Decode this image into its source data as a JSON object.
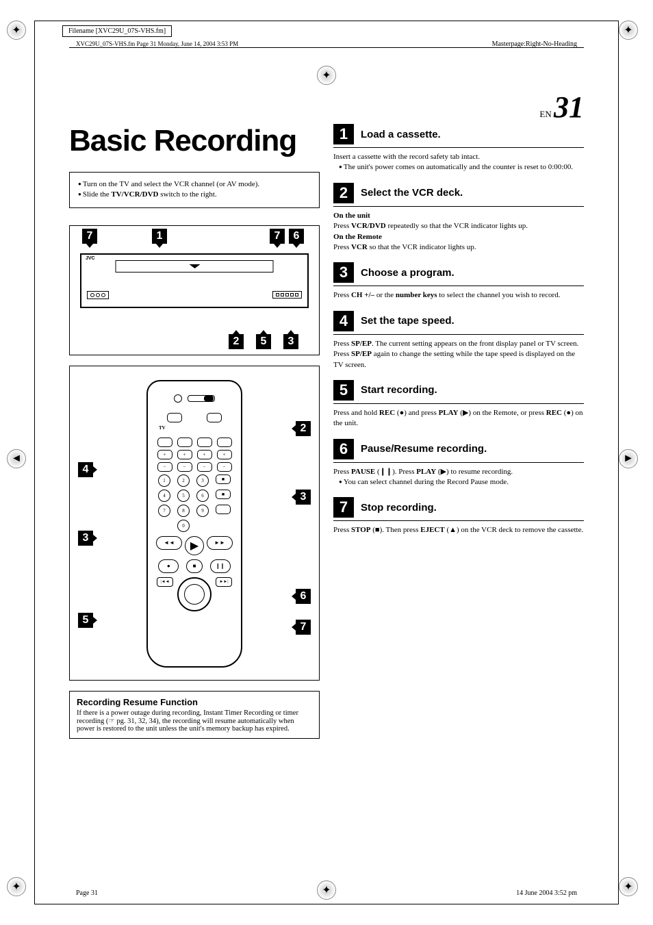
{
  "filename_label": "Filename [XVC29U_07S-VHS.fm]",
  "header_text": "XVC29U_07S-VHS.fm  Page 31  Monday, June 14, 2004  3:53 PM",
  "masterpage": "Masterpage:Right-No-Heading",
  "page_en_prefix": "EN",
  "page_en_number": "31",
  "main_title": "Basic Recording",
  "intro_items": [
    "Turn on the TV and select the VCR channel (or AV mode).",
    "Slide the TV/VCR/DVD switch to the right."
  ],
  "intro_bold_fragment": "TV/VCR/DVD",
  "device_callouts": {
    "top": [
      "7",
      "1",
      "7",
      "6"
    ],
    "bottom": [
      "2",
      "5",
      "3"
    ]
  },
  "device_brand": "JVC",
  "remote_callouts": {
    "c1": "2",
    "c2": "4",
    "c3": "3",
    "c4": "3",
    "c5": "6",
    "c6": "5",
    "c7": "7"
  },
  "remote_tv_label": "TV",
  "resume": {
    "title": "Recording Resume Function",
    "body": "If there is a power outage during recording, Instant Timer Recording or timer recording (☞ pg. 31, 32, 34), the recording will resume automatically when power is restored to the unit unless the unit's memory backup has expired."
  },
  "steps": [
    {
      "n": "1",
      "title": "Load a cassette.",
      "body_html": "Insert a cassette with the record safety tab intact.<br><span class='bullet'>The unit's power comes on automatically and the counter is reset to 0:00:00.</span>"
    },
    {
      "n": "2",
      "title": "Select the VCR deck.",
      "body_html": "<span class='sub'>On the unit</span><br>Press <b>VCR/DVD</b> repeatedly so that the VCR indicator lights up.<br><span class='sub'>On the Remote</span><br>Press <b>VCR</b> so that the VCR indicator lights up."
    },
    {
      "n": "3",
      "title": "Choose a program.",
      "body_html": "Press <b>CH +/–</b> or the <b>number keys</b> to select the channel you wish to record."
    },
    {
      "n": "4",
      "title": "Set the tape speed.",
      "body_html": "Press <b>SP/EP</b>. The current setting appears on the front display panel or TV screen. Press <b>SP/EP</b> again to change the setting while the tape speed is displayed on the TV screen."
    },
    {
      "n": "5",
      "title": "Start recording.",
      "body_html": "Press and hold <b>REC</b> (●) and press <b>PLAY</b> (▶) on the Remote, or press <b>REC</b> (●) on the unit."
    },
    {
      "n": "6",
      "title": "Pause/Resume recording.",
      "body_html": "Press <b>PAUSE</b> (❙❙). Press <b>PLAY</b> (▶) to resume recording.<br><span class='bullet'>You can select channel during the Record Pause mode.</span>"
    },
    {
      "n": "7",
      "title": "Stop recording.",
      "body_html": "Press <b>STOP</b> (■). Then press <b>EJECT</b> (▲) on the VCR deck to remove the cassette."
    }
  ],
  "footer_left": "Page 31",
  "footer_right": "14 June 2004 3:52 pm",
  "colors": {
    "text": "#000000",
    "background": "#ffffff",
    "callout_bg": "#000000",
    "callout_fg": "#ffffff"
  }
}
